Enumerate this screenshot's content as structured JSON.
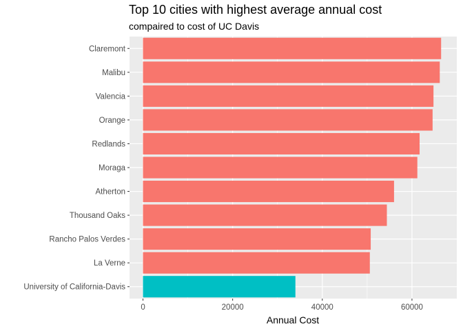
{
  "chart_data": {
    "type": "bar",
    "orientation": "horizontal",
    "title": "Top 10 cities with highest average annual cost",
    "subtitle": "compaired to cost of UC Davis",
    "xlabel": "Annual Cost",
    "ylabel": "",
    "xlim": [
      -3000,
      70000
    ],
    "x_ticks": [
      0,
      20000,
      40000,
      60000
    ],
    "x_tick_labels": [
      "0",
      "20000",
      "40000",
      "60000"
    ],
    "grid": true,
    "legend": "none",
    "categories": [
      "Claremont",
      "Malibu",
      "Valencia",
      "Orange",
      "Redlands",
      "Moraga",
      "Atherton",
      "Thousand Oaks",
      "Rancho Palos Verdes",
      "La Verne",
      "University of California-Davis"
    ],
    "values": [
      66500,
      66200,
      64800,
      64600,
      61700,
      61200,
      56000,
      54400,
      50800,
      50600,
      34000
    ],
    "groups": [
      "top",
      "top",
      "top",
      "top",
      "top",
      "top",
      "top",
      "top",
      "top",
      "top",
      "uc"
    ],
    "colors": {
      "top": "#F8766D",
      "uc": "#00BFC4"
    },
    "panel_color": "#EBEBEB",
    "grid_color": "#FFFFFF"
  }
}
